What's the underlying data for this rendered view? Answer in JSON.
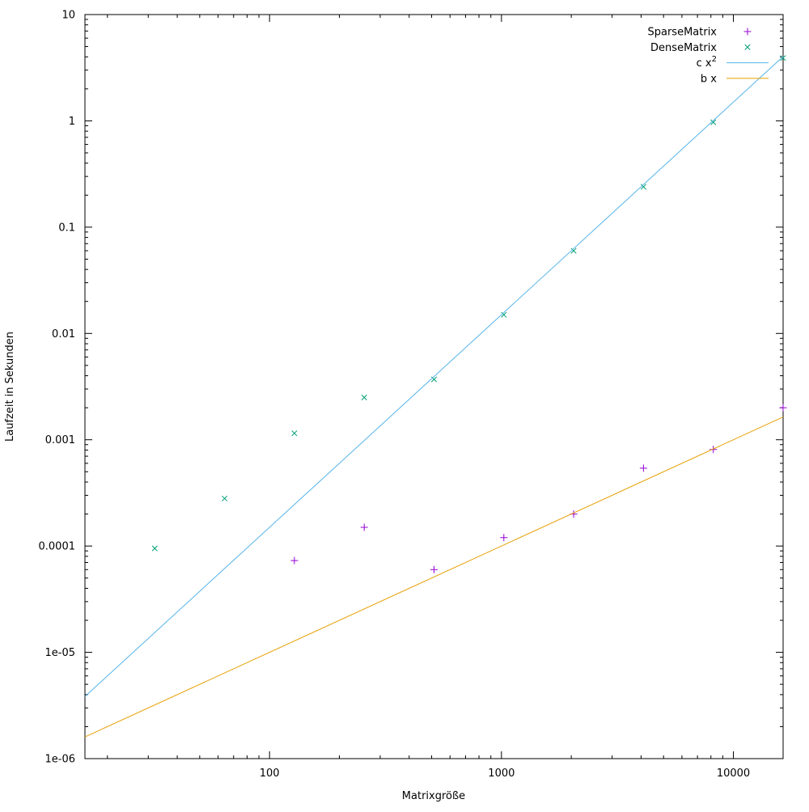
{
  "chart_data": {
    "type": "scatter",
    "title": "",
    "xlabel": "Matrixgröße",
    "ylabel": "Laufzeit in Sekunden",
    "xscale": "log",
    "yscale": "log",
    "xlim": [
      16,
      16384
    ],
    "ylim": [
      1e-06,
      10
    ],
    "grid": false,
    "legend_position": "top-right-inside",
    "border_color": "#000000",
    "background_color": "#ffffff",
    "xticks": {
      "values": [
        100,
        1000,
        10000
      ],
      "labels": [
        "100",
        "1000",
        "10000"
      ]
    },
    "yticks": {
      "values": [
        1e-06,
        1e-05,
        0.0001,
        0.001,
        0.01,
        0.1,
        1,
        10
      ],
      "labels": [
        "1e-06",
        "1e-05",
        "0.0001",
        "0.001",
        "0.01",
        "0.1",
        "1",
        "10"
      ]
    },
    "series": [
      {
        "name": "SparseMatrix",
        "kind": "points",
        "marker": "plus",
        "color": "#9400D3",
        "label_parts": [
          {
            "text": "SparseMatrix",
            "sup": false
          }
        ],
        "x": [
          128,
          256,
          512,
          1024,
          2048,
          4096,
          8192,
          16384
        ],
        "y": [
          7.3e-05,
          0.00015,
          6e-05,
          0.00012,
          0.0002,
          0.00054,
          0.00081,
          0.002
        ]
      },
      {
        "name": "DenseMatrix",
        "kind": "points",
        "marker": "cross",
        "color": "#009E73",
        "label_parts": [
          {
            "text": "DenseMatrix",
            "sup": false
          }
        ],
        "x": [
          32,
          64,
          128,
          256,
          512,
          1024,
          2048,
          4096,
          8192,
          16384
        ],
        "y": [
          9.5e-05,
          0.00028,
          0.00115,
          0.0025,
          0.0037,
          0.015,
          0.06,
          0.24,
          0.97,
          3.9
        ]
      },
      {
        "name": "c x^2",
        "kind": "line",
        "color": "#56B4E9",
        "label_parts": [
          {
            "text": "c x",
            "sup": false
          },
          {
            "text": "2",
            "sup": true
          }
        ],
        "coeff": 1.5e-08,
        "power": 2
      },
      {
        "name": "b x",
        "kind": "line",
        "color": "#E69F00",
        "label_parts": [
          {
            "text": "b x",
            "sup": false
          }
        ],
        "coeff": 1e-07,
        "power": 1
      }
    ]
  }
}
